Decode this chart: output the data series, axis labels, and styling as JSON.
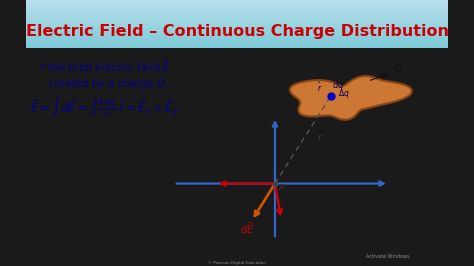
{
  "title": "Electric Field – Continuous Charge Distribution",
  "title_color": "#cc0000",
  "title_fontsize": 11.5,
  "bg_color": "#1a1a1a",
  "header_grad_top": "#7ecfdf",
  "header_grad_bot": "#ffffff",
  "body_bg": "#f5f5f5",
  "text_color": "#00008b",
  "formula_color": "#00008b",
  "axis_color": "#3366cc",
  "arrow_red_color": "#cc0000",
  "arrow_orange_color": "#cc6600",
  "blob_color": "#cc7733",
  "blob_edge_color": "#8b4513",
  "dq_color": "#0000bb",
  "E_label_color": "#cc0000",
  "watermark1": "Activate Windows",
  "watermark2": "© Pearson Digital Education",
  "side_bar_color": "#111111",
  "side_bar_width": 0.055
}
